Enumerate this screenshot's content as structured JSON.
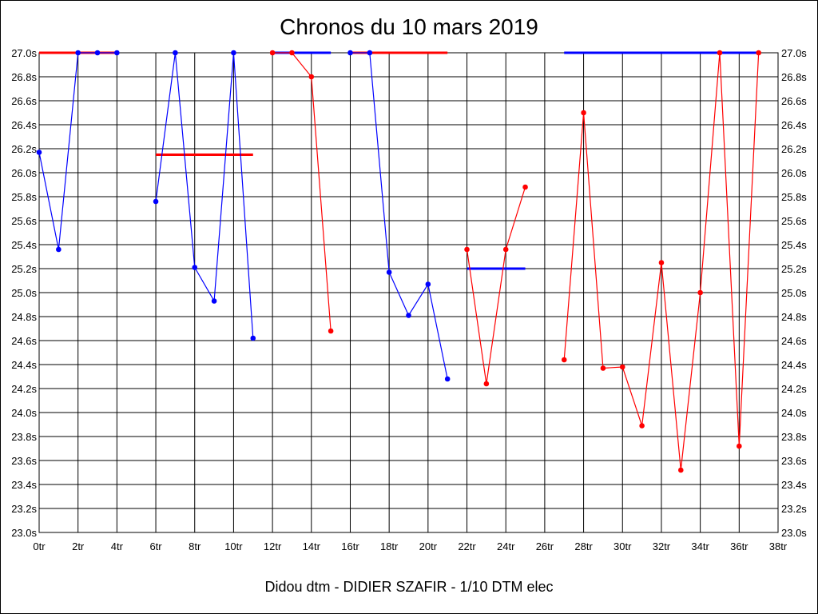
{
  "chart_data": {
    "type": "line",
    "title": "Chronos du 10 mars 2019",
    "footer": "Didou dtm - DIDIER SZAFIR - 1/10 DTM elec",
    "xlim": [
      0,
      38
    ],
    "ylim": [
      23.0,
      27.0
    ],
    "x_ticks": [
      {
        "v": 0,
        "label": "0tr"
      },
      {
        "v": 2,
        "label": "2tr"
      },
      {
        "v": 4,
        "label": "4tr"
      },
      {
        "v": 6,
        "label": "6tr"
      },
      {
        "v": 8,
        "label": "8tr"
      },
      {
        "v": 10,
        "label": "10tr"
      },
      {
        "v": 12,
        "label": "12tr"
      },
      {
        "v": 14,
        "label": "14tr"
      },
      {
        "v": 16,
        "label": "16tr"
      },
      {
        "v": 18,
        "label": "18tr"
      },
      {
        "v": 20,
        "label": "20tr"
      },
      {
        "v": 22,
        "label": "22tr"
      },
      {
        "v": 24,
        "label": "24tr"
      },
      {
        "v": 26,
        "label": "26tr"
      },
      {
        "v": 28,
        "label": "28tr"
      },
      {
        "v": 30,
        "label": "30tr"
      },
      {
        "v": 32,
        "label": "32tr"
      },
      {
        "v": 34,
        "label": "34tr"
      },
      {
        "v": 36,
        "label": "36tr"
      },
      {
        "v": 38,
        "label": "38tr"
      }
    ],
    "y_ticks": [
      {
        "v": 27.0,
        "label": "27.0s"
      },
      {
        "v": 26.8,
        "label": "26.8s"
      },
      {
        "v": 26.6,
        "label": "26.6s"
      },
      {
        "v": 26.4,
        "label": "26.4s"
      },
      {
        "v": 26.2,
        "label": "26.2s"
      },
      {
        "v": 26.0,
        "label": "26.0s"
      },
      {
        "v": 25.8,
        "label": "25.8s"
      },
      {
        "v": 25.6,
        "label": "25.6s"
      },
      {
        "v": 25.4,
        "label": "25.4s"
      },
      {
        "v": 25.2,
        "label": "25.2s"
      },
      {
        "v": 25.0,
        "label": "25.0s"
      },
      {
        "v": 24.8,
        "label": "24.8s"
      },
      {
        "v": 24.6,
        "label": "24.6s"
      },
      {
        "v": 24.4,
        "label": "24.4s"
      },
      {
        "v": 24.2,
        "label": "24.2s"
      },
      {
        "v": 24.0,
        "label": "24.0s"
      },
      {
        "v": 23.8,
        "label": "23.8s"
      },
      {
        "v": 23.6,
        "label": "23.6s"
      },
      {
        "v": 23.4,
        "label": "23.4s"
      },
      {
        "v": 23.2,
        "label": "23.2s"
      },
      {
        "v": 23.0,
        "label": "23.0s"
      }
    ],
    "grid": true,
    "series": [
      {
        "color": "#0000ff",
        "x": [
          0,
          1,
          2,
          3,
          4
        ],
        "y": [
          26.17,
          25.36,
          27.0,
          27.0,
          27.0
        ]
      },
      {
        "color": "#0000ff",
        "x": [
          6,
          7,
          8,
          9,
          10,
          11
        ],
        "y": [
          25.76,
          27.0,
          25.21,
          24.93,
          27.0,
          24.62
        ]
      },
      {
        "color": "#ff0000",
        "x": [
          12,
          13,
          14,
          15
        ],
        "y": [
          27.0,
          27.0,
          26.8,
          24.68
        ]
      },
      {
        "color": "#0000ff",
        "x": [
          16,
          17,
          18,
          19,
          20,
          21
        ],
        "y": [
          27.0,
          27.0,
          25.17,
          24.81,
          25.07,
          24.28
        ]
      },
      {
        "color": "#ff0000",
        "x": [
          22,
          23,
          24,
          25
        ],
        "y": [
          25.36,
          24.24,
          25.36,
          25.88
        ]
      },
      {
        "color": "#ff0000",
        "x": [
          27,
          28,
          29,
          30,
          31,
          32,
          33,
          34,
          35,
          36,
          37
        ],
        "y": [
          24.44,
          26.5,
          24.37,
          24.38,
          23.89,
          25.25,
          23.52,
          25.0,
          27.0,
          23.72,
          27.0
        ]
      }
    ],
    "mean_lines": [
      {
        "color": "#ff0000",
        "x": [
          0,
          4
        ],
        "y": 27.0
      },
      {
        "color": "#ff0000",
        "x": [
          6,
          11
        ],
        "y": 26.15
      },
      {
        "color": "#0000ff",
        "x": [
          12,
          15
        ],
        "y": 27.0
      },
      {
        "color": "#ff0000",
        "x": [
          16,
          21
        ],
        "y": 27.0
      },
      {
        "color": "#0000ff",
        "x": [
          22,
          25
        ],
        "y": 25.2
      },
      {
        "color": "#0000ff",
        "x": [
          27,
          37
        ],
        "y": 27.0
      }
    ]
  }
}
